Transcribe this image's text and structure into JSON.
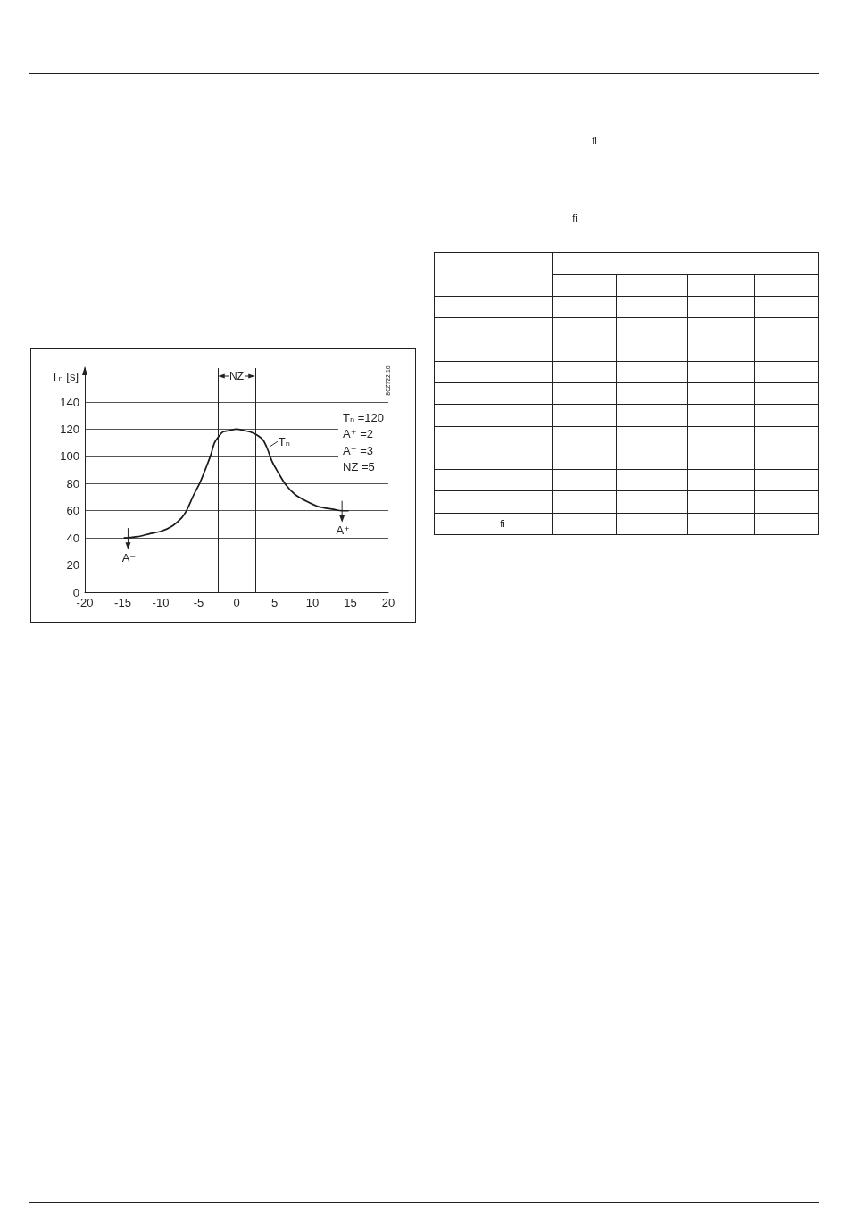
{
  "chart_data": {
    "type": "line",
    "ylabel": "Tₙ [s]",
    "x": [
      -14.8,
      -13,
      -11.5,
      -9.9,
      -8.4,
      -7.2,
      -6.6,
      -5.7,
      -4.8,
      -4,
      -3.4,
      -2.9,
      -2.3,
      -1.8,
      -1,
      0,
      1,
      1.8,
      2.6,
      3.5,
      4.1,
      4.7,
      5.5,
      6.5,
      7.7,
      9.2,
      10.8,
      12.8,
      13.9,
      14.7
    ],
    "series": [
      {
        "name": "Tₙ",
        "color": "#1a1a1a",
        "values": [
          40,
          41,
          43,
          45,
          49,
          55,
          60,
          71,
          81,
          92,
          101,
          110,
          115,
          118,
          119,
          120,
          119,
          118,
          116,
          112,
          105,
          96,
          88,
          79,
          72,
          67,
          63,
          61,
          60,
          60
        ]
      }
    ],
    "xlim": [
      -20,
      20
    ],
    "xticks": [
      -20,
      -15,
      -10,
      -5,
      0,
      5,
      10,
      15,
      20
    ],
    "ylim": [
      0,
      165
    ],
    "yticks": [
      0,
      20,
      40,
      60,
      80,
      100,
      120,
      140
    ],
    "grid": "y",
    "marker": "none",
    "line_style": "solid",
    "ref_lines": [
      {
        "axis": "x",
        "value": -2.5
      },
      {
        "axis": "x",
        "value": 2.5
      },
      {
        "axis": "x",
        "value": 0
      }
    ],
    "annotations": [
      "Tₙ =120",
      "A⁺ =2",
      "A⁻ =3",
      "NZ =5",
      "NZ",
      {
        "text": "A⁻",
        "x": -14.3,
        "y": 40
      },
      {
        "text": "A⁺",
        "x": 13.9,
        "y": 60
      },
      "80Z722.10",
      "ﬁ",
      "ﬁ",
      "ﬁ"
    ]
  }
}
